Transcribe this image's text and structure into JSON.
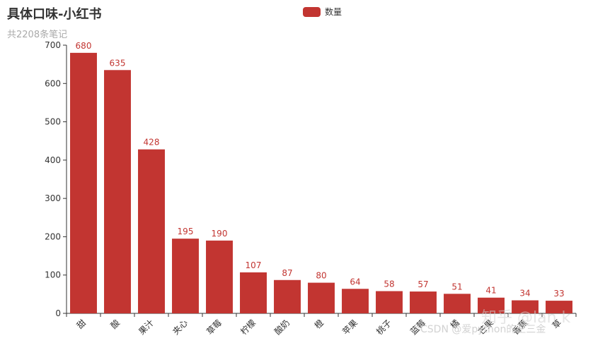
{
  "header": {
    "title": "具体口味-小红书",
    "subtitle": "共2208条笔记"
  },
  "legend": {
    "label": "数量",
    "color": "#c23531"
  },
  "watermark": {
    "line1": "知乎 @lan k",
    "line2": "CSDN @爱python的王三金"
  },
  "chart_data": {
    "type": "bar",
    "title": "具体口味-小红书",
    "subtitle": "共2208条笔记",
    "categories": [
      "甜",
      "酸",
      "果汁",
      "夹心",
      "草莓",
      "柠檬",
      "酸奶",
      "橙",
      "苹果",
      "桃子",
      "蓝莓",
      "橘",
      "芒果",
      "香蕉",
      "草"
    ],
    "series": [
      {
        "name": "数量",
        "values": [
          680,
          635,
          428,
          195,
          190,
          107,
          87,
          80,
          64,
          58,
          57,
          51,
          41,
          34,
          33
        ],
        "color": "#c23531"
      }
    ],
    "yticks": [
      0,
      100,
      200,
      300,
      400,
      500,
      600,
      700
    ],
    "ylim": [
      0,
      700
    ],
    "grid": false,
    "legend_position": "top-center"
  }
}
